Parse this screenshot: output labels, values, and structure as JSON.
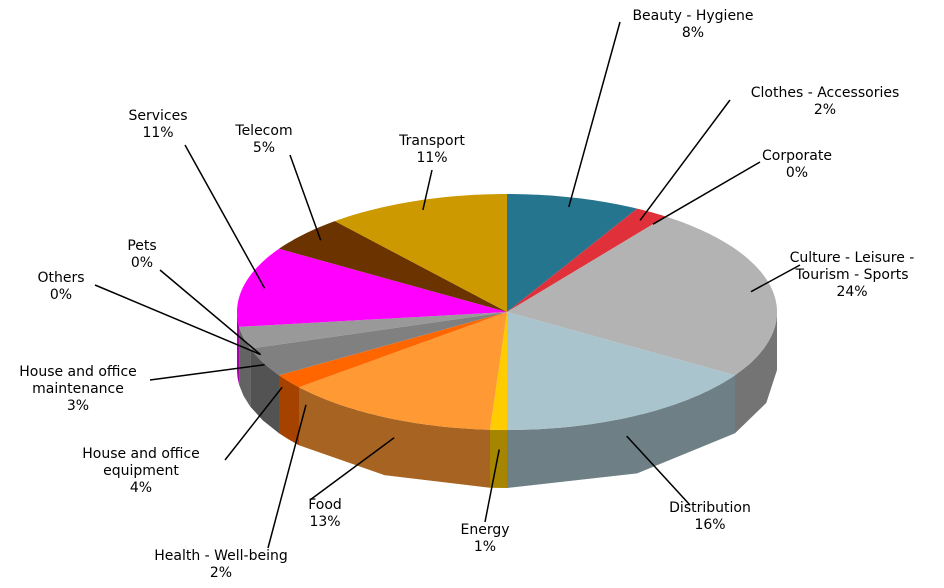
{
  "chart_data": {
    "type": "pie",
    "categories": [
      "Beauty - Hygiene",
      "Clothes - Accessories",
      "Corporate",
      "Culture - Leisure - Tourism - Sports",
      "Distribution",
      "Energy",
      "Food",
      "Health - Well-being",
      "House and office equipment",
      "House and office maintenance",
      "Others",
      "Pets",
      "Services",
      "Telecom",
      "Transport"
    ],
    "values": [
      8,
      2,
      0,
      24,
      16,
      1,
      13,
      2,
      4,
      3,
      0,
      0,
      11,
      5,
      11
    ],
    "value_labels": [
      "8%",
      "2%",
      "0%",
      "24%",
      "16%",
      "1%",
      "13%",
      "2%",
      "4%",
      "3%",
      "0%",
      "0%",
      "11%",
      "5%",
      "11%"
    ],
    "colors": [
      "#26758f",
      "#e0303a",
      "#c8c8c8",
      "#b3b3b3",
      "#a9c4cc",
      "#ffcc00",
      "#ff9933",
      "#ff6600",
      "#808080",
      "#999999",
      "#aaaaaa",
      "#0a8a0a",
      "#ff00ff",
      "#6b3300",
      "#cc9900"
    ]
  }
}
